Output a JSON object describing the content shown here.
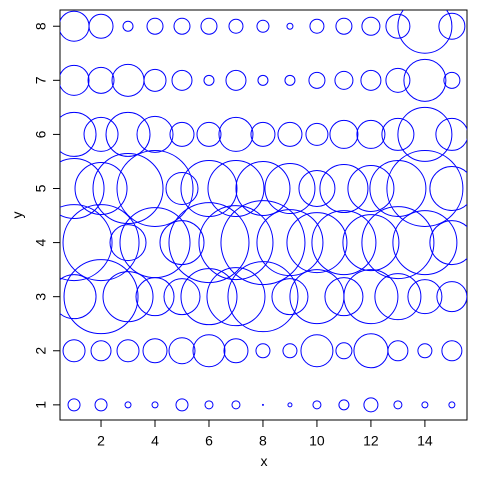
{
  "chart_data": {
    "type": "scatter",
    "x_label": "x",
    "y_label": "y",
    "x": [
      1,
      2,
      3,
      4,
      5,
      6,
      7,
      8,
      9,
      10,
      11,
      12,
      13,
      14,
      15,
      1,
      2,
      3,
      4,
      5,
      6,
      7,
      8,
      9,
      10,
      11,
      12,
      13,
      14,
      15,
      1,
      2,
      3,
      4,
      5,
      6,
      7,
      8,
      9,
      10,
      11,
      12,
      13,
      14,
      15,
      1,
      2,
      3,
      4,
      5,
      6,
      7,
      8,
      9,
      10,
      11,
      12,
      13,
      14,
      15,
      1,
      2,
      3,
      4,
      5,
      6,
      7,
      8,
      9,
      10,
      11,
      12,
      13,
      14,
      15,
      1,
      2,
      3,
      4,
      5,
      6,
      7,
      8,
      9,
      10,
      11,
      12,
      13,
      14,
      15,
      1,
      2,
      3,
      4,
      5,
      6,
      7,
      8,
      9,
      10,
      11,
      12,
      13,
      14,
      15,
      1,
      2,
      3,
      4,
      5,
      6,
      7,
      8,
      9,
      10,
      11,
      12,
      13,
      14,
      15
    ],
    "y": [
      1,
      1,
      1,
      1,
      1,
      1,
      1,
      1,
      1,
      1,
      1,
      1,
      1,
      1,
      1,
      2,
      2,
      2,
      2,
      2,
      2,
      2,
      2,
      2,
      2,
      2,
      2,
      2,
      2,
      2,
      3,
      3,
      3,
      3,
      3,
      3,
      3,
      3,
      3,
      3,
      3,
      3,
      3,
      3,
      3,
      4,
      4,
      4,
      4,
      4,
      4,
      4,
      4,
      4,
      4,
      4,
      4,
      4,
      4,
      4,
      5,
      5,
      5,
      5,
      5,
      5,
      5,
      5,
      5,
      5,
      5,
      5,
      5,
      5,
      5,
      6,
      6,
      6,
      6,
      6,
      6,
      6,
      6,
      6,
      6,
      6,
      6,
      6,
      6,
      6,
      7,
      7,
      7,
      7,
      7,
      7,
      7,
      7,
      7,
      7,
      7,
      7,
      7,
      7,
      7,
      8,
      8,
      8,
      8,
      8,
      8,
      8,
      8,
      8,
      8,
      8,
      8,
      8,
      8,
      8
    ],
    "size": [
      6,
      6,
      3,
      3,
      6,
      4,
      4,
      0.5,
      2,
      4,
      5,
      7,
      4,
      3,
      3,
      11,
      10,
      11,
      12,
      13,
      16,
      12,
      7,
      7,
      16,
      8,
      17,
      10,
      7,
      10,
      22,
      37,
      25,
      19,
      18,
      28,
      29,
      35,
      18,
      27,
      19,
      27,
      23,
      17,
      15,
      38,
      38,
      18,
      35,
      22,
      40,
      37,
      42,
      33,
      30,
      32,
      28,
      36,
      32,
      22,
      30,
      26,
      35,
      38,
      16,
      28,
      28,
      27,
      25,
      18,
      24,
      23,
      28,
      38,
      22,
      22,
      17,
      22,
      18,
      12,
      12,
      17,
      12,
      12,
      11,
      14,
      14,
      16,
      27,
      16,
      15,
      13,
      16,
      11,
      10,
      5,
      10,
      5,
      5,
      8,
      9,
      10,
      12,
      21,
      8,
      15,
      12,
      5,
      8,
      8,
      8,
      7,
      6,
      3,
      7,
      8,
      9,
      12,
      27,
      13
    ],
    "color": "#0000ff",
    "xlim": [
      0.48,
      15.56
    ],
    "ylim": [
      0.72,
      8.3
    ],
    "xticks": [
      2,
      4,
      6,
      8,
      10,
      12,
      14
    ],
    "yticks": [
      1,
      2,
      3,
      4,
      5,
      6,
      7,
      8
    ]
  }
}
